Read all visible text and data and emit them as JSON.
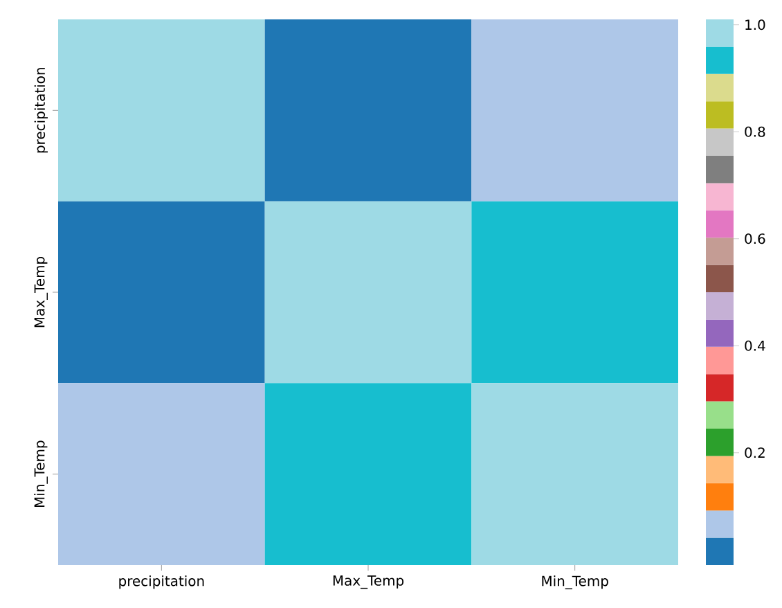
{
  "chart_data": {
    "type": "heatmap",
    "categories": [
      "precipitation",
      "Max_Temp",
      "Min_Temp"
    ],
    "y_categories": [
      "precipitation",
      "Max_Temp",
      "Min_Temp"
    ],
    "cells": [
      [
        1.0,
        0.0,
        0.07
      ],
      [
        0.0,
        1.0,
        0.93
      ],
      [
        0.07,
        0.93,
        1.0
      ]
    ],
    "clim": [
      -0.01,
      1.01
    ],
    "cticks": [
      0.2,
      0.4,
      0.6,
      0.8,
      {
        "value": 1,
        "label": "1.0"
      }
    ]
  }
}
